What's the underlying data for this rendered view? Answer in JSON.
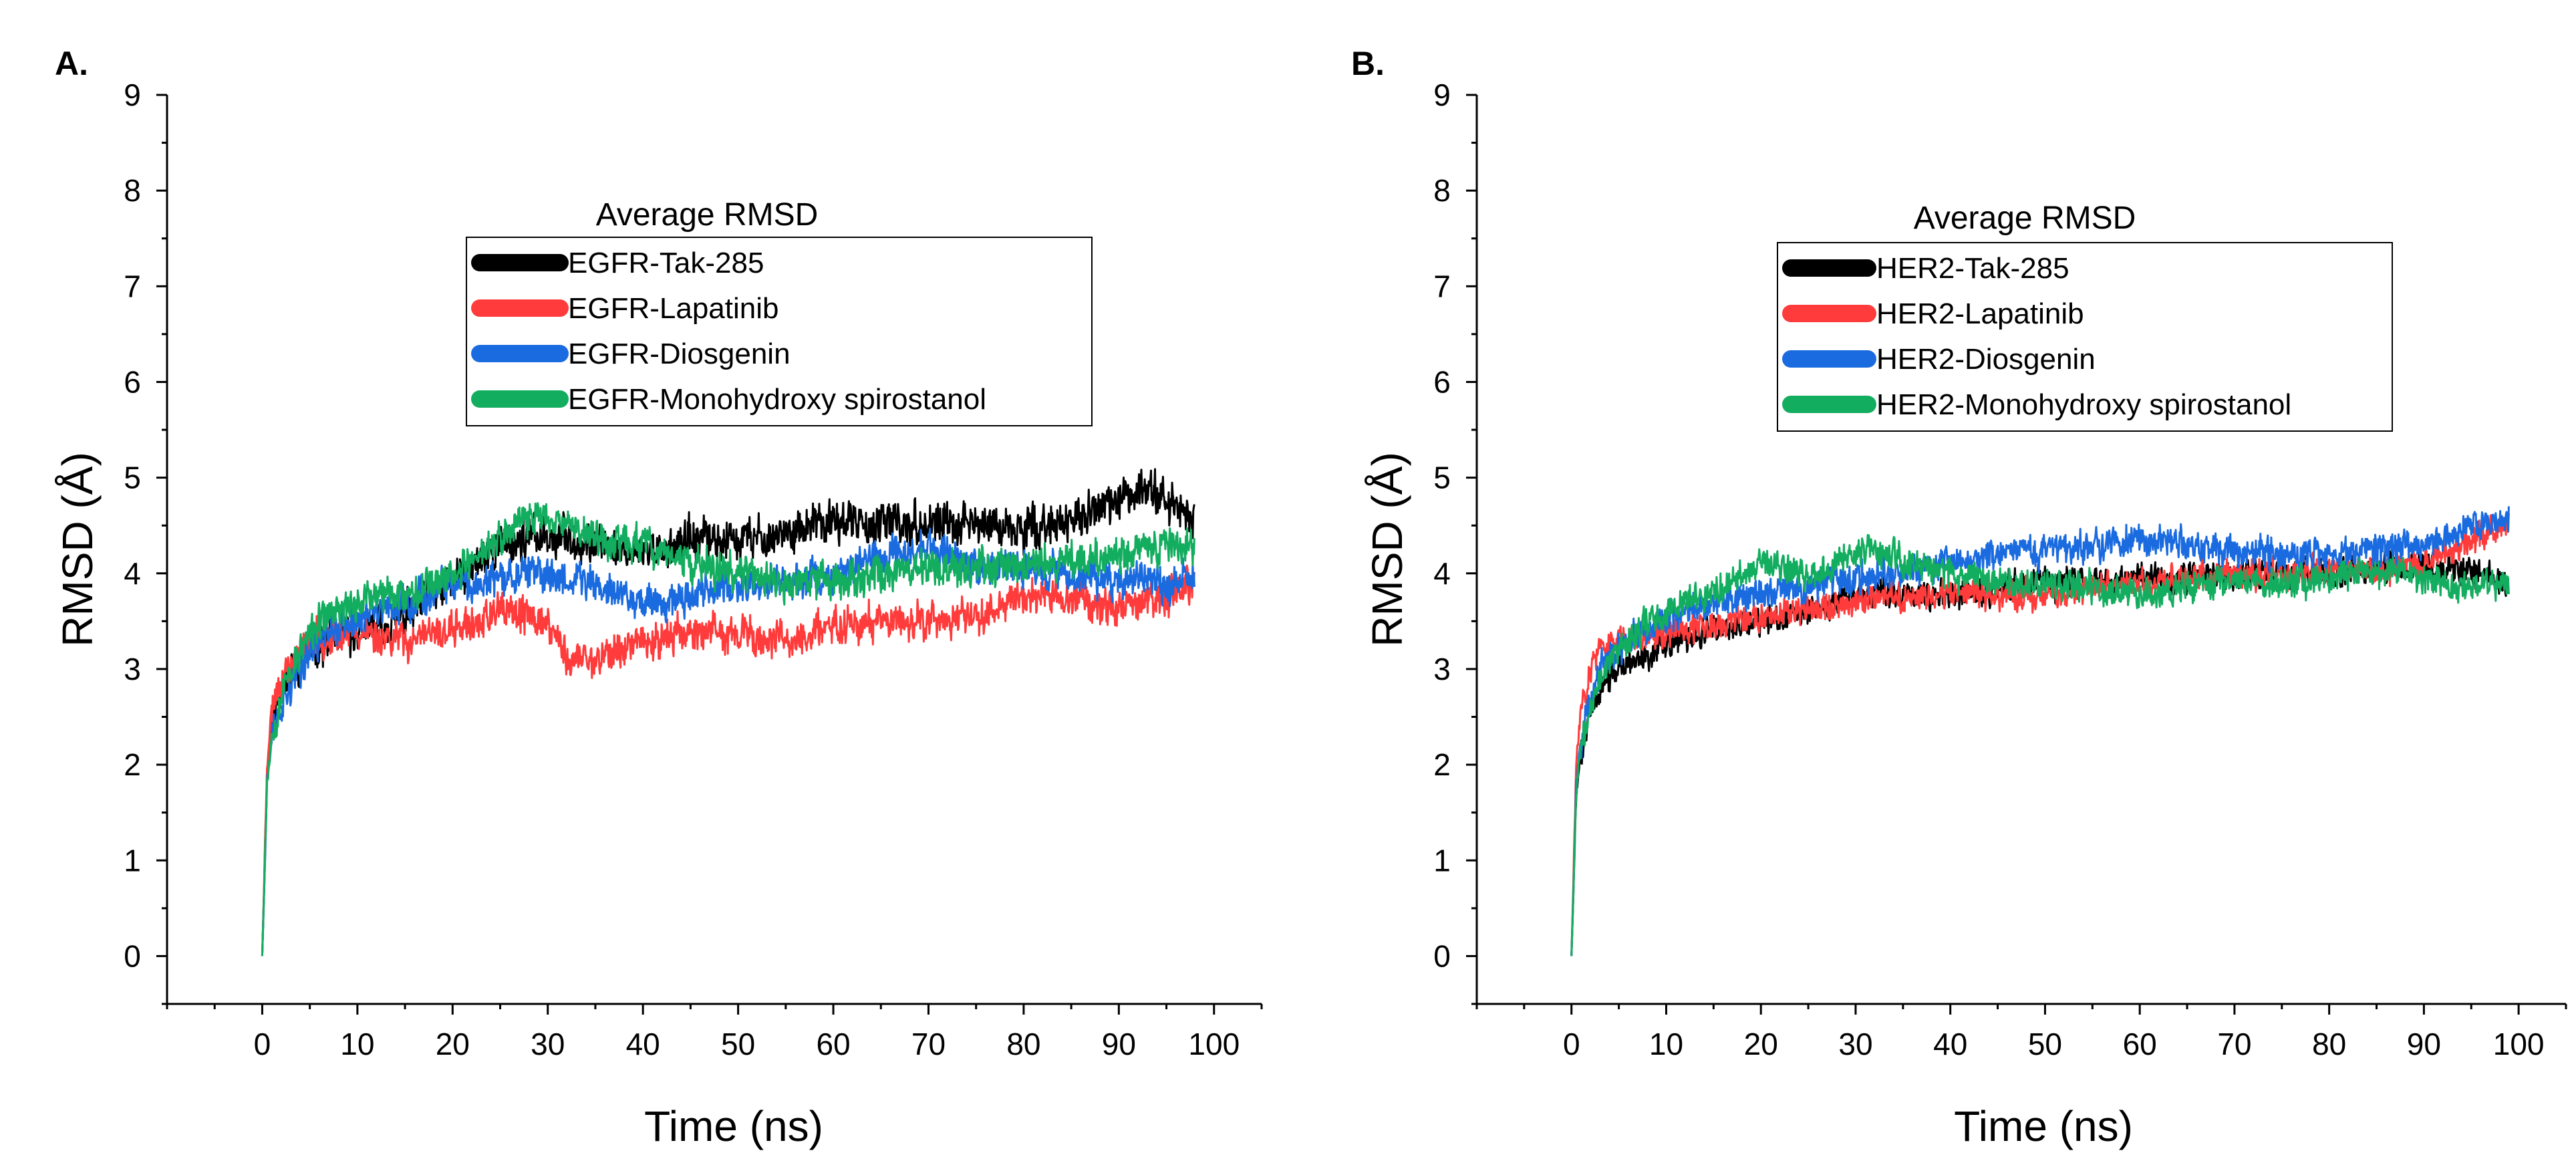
{
  "figure": {
    "panels": [
      {
        "label": "A.",
        "legend": {
          "title": "Average RMSD",
          "entries": [
            "EGFR-Tak-285",
            "EGFR-Lapatinib",
            "EGFR-Diosgenin",
            "EGFR-Monohydroxy spirostanol"
          ]
        }
      },
      {
        "label": "B.",
        "legend": {
          "title": "Average RMSD",
          "entries": [
            "HER2-Tak-285",
            "HER2-Lapatinib",
            "HER2-Diosgenin",
            "HER2-Monohydroxy spirostanol"
          ]
        }
      }
    ]
  },
  "colors": {
    "black": "#000000",
    "red": "#ff3b3b",
    "blue": "#1a6be0",
    "green": "#13ad5f"
  },
  "chart_data": [
    {
      "type": "line",
      "title": "Average RMSD",
      "xlabel": "Time (ns)",
      "ylabel": "RMSD (Å)",
      "xlim": [
        -10,
        105
      ],
      "ylim": [
        -0.5,
        9
      ],
      "xticks": [
        0,
        10,
        20,
        30,
        40,
        50,
        60,
        70,
        80,
        90,
        100
      ],
      "yticks": [
        0,
        1,
        2,
        3,
        4,
        5,
        6,
        7,
        8,
        9
      ],
      "series": [
        {
          "name": "EGFR-Tak-285",
          "color": "#000000",
          "noise": 0.22,
          "seed": 11,
          "x": [
            0,
            0.5,
            1,
            2,
            3,
            5,
            7,
            10,
            15,
            20,
            25,
            30,
            35,
            40,
            45,
            50,
            55,
            60,
            65,
            70,
            75,
            80,
            85,
            90,
            93,
            95,
            98
          ],
          "y": [
            0,
            1.9,
            2.4,
            2.8,
            3.0,
            3.2,
            3.3,
            3.4,
            3.55,
            3.9,
            4.3,
            4.4,
            4.3,
            4.2,
            4.35,
            4.35,
            4.4,
            4.55,
            4.5,
            4.5,
            4.5,
            4.45,
            4.55,
            4.75,
            4.95,
            4.75,
            4.55
          ]
        },
        {
          "name": "EGFR-Lapatinib",
          "color": "#ff3b3b",
          "noise": 0.2,
          "seed": 23,
          "x": [
            0,
            0.5,
            1,
            2,
            3,
            5,
            7,
            10,
            15,
            20,
            25,
            30,
            32,
            35,
            40,
            45,
            50,
            55,
            60,
            65,
            70,
            75,
            80,
            85,
            90,
            95,
            98
          ],
          "y": [
            0,
            2.0,
            2.6,
            2.9,
            3.0,
            3.3,
            3.35,
            3.4,
            3.3,
            3.4,
            3.6,
            3.5,
            3.1,
            3.1,
            3.3,
            3.4,
            3.35,
            3.3,
            3.45,
            3.5,
            3.5,
            3.55,
            3.8,
            3.75,
            3.65,
            3.75,
            3.9
          ]
        },
        {
          "name": "EGFR-Diosgenin",
          "color": "#1a6be0",
          "noise": 0.2,
          "seed": 37,
          "x": [
            0,
            0.5,
            1,
            2,
            3,
            5,
            7,
            10,
            15,
            20,
            25,
            30,
            35,
            40,
            45,
            50,
            55,
            60,
            65,
            70,
            75,
            80,
            85,
            90,
            95,
            98
          ],
          "y": [
            0,
            1.8,
            2.3,
            2.6,
            2.8,
            3.2,
            3.4,
            3.5,
            3.7,
            3.85,
            3.95,
            4.0,
            3.9,
            3.7,
            3.8,
            3.85,
            3.9,
            4.0,
            4.2,
            4.25,
            4.1,
            4.05,
            4.0,
            3.95,
            3.9,
            3.95
          ]
        },
        {
          "name": "EGFR-Monohydroxy spirostanol",
          "color": "#13ad5f",
          "noise": 0.2,
          "seed": 53,
          "x": [
            0,
            0.5,
            1,
            2,
            3,
            5,
            7,
            10,
            15,
            20,
            25,
            28,
            31,
            35,
            40,
            45,
            50,
            55,
            60,
            65,
            70,
            75,
            80,
            85,
            90,
            95,
            98
          ],
          "y": [
            0,
            1.8,
            2.3,
            2.7,
            3.0,
            3.35,
            3.6,
            3.7,
            3.8,
            4.0,
            4.35,
            4.6,
            4.6,
            4.35,
            4.3,
            4.1,
            4.0,
            3.9,
            3.95,
            4.0,
            4.1,
            4.05,
            4.1,
            4.15,
            4.2,
            4.3,
            4.3
          ]
        }
      ]
    },
    {
      "type": "line",
      "title": "Average RMSD",
      "xlabel": "Time (ns)",
      "ylabel": "RMSD (Å)",
      "xlim": [
        -10,
        105
      ],
      "ylim": [
        -0.5,
        9
      ],
      "xticks": [
        0,
        10,
        20,
        30,
        40,
        50,
        60,
        70,
        80,
        90,
        100
      ],
      "yticks": [
        0,
        1,
        2,
        3,
        4,
        5,
        6,
        7,
        8,
        9
      ],
      "series": [
        {
          "name": "HER2-Tak-285",
          "color": "#000000",
          "noise": 0.16,
          "seed": 71,
          "x": [
            0,
            0.5,
            1,
            2,
            3,
            5,
            7,
            10,
            15,
            20,
            25,
            30,
            35,
            40,
            45,
            50,
            55,
            60,
            65,
            70,
            75,
            80,
            85,
            90,
            95,
            99
          ],
          "y": [
            0,
            1.7,
            2.1,
            2.6,
            2.8,
            3.0,
            3.1,
            3.25,
            3.4,
            3.5,
            3.6,
            3.75,
            3.8,
            3.8,
            3.85,
            3.9,
            3.9,
            3.95,
            3.95,
            4.0,
            4.0,
            4.0,
            4.05,
            4.1,
            4.0,
            3.9
          ]
        },
        {
          "name": "HER2-Lapatinib",
          "color": "#ff3b3b",
          "noise": 0.16,
          "seed": 83,
          "x": [
            0,
            0.5,
            1,
            2,
            3,
            5,
            7,
            10,
            15,
            20,
            25,
            30,
            35,
            40,
            45,
            50,
            55,
            60,
            65,
            70,
            75,
            80,
            85,
            90,
            95,
            99
          ],
          "y": [
            0,
            2.0,
            2.6,
            3.0,
            3.2,
            3.3,
            3.35,
            3.4,
            3.45,
            3.55,
            3.6,
            3.7,
            3.75,
            3.8,
            3.8,
            3.75,
            3.85,
            3.9,
            3.95,
            4.0,
            4.0,
            4.05,
            4.0,
            4.1,
            4.35,
            4.55
          ]
        },
        {
          "name": "HER2-Diosgenin",
          "color": "#1a6be0",
          "noise": 0.17,
          "seed": 97,
          "x": [
            0,
            0.5,
            1,
            2,
            3,
            5,
            7,
            10,
            15,
            20,
            25,
            30,
            35,
            40,
            45,
            50,
            55,
            60,
            65,
            70,
            75,
            80,
            85,
            90,
            95,
            99
          ],
          "y": [
            0,
            1.8,
            2.3,
            2.7,
            3.0,
            3.2,
            3.35,
            3.5,
            3.7,
            3.8,
            3.85,
            3.95,
            4.0,
            4.1,
            4.2,
            4.25,
            4.3,
            4.35,
            4.3,
            4.25,
            4.2,
            4.2,
            4.25,
            4.3,
            4.5,
            4.6
          ]
        },
        {
          "name": "HER2-Monohydroxy spirostanol",
          "color": "#13ad5f",
          "noise": 0.17,
          "seed": 109,
          "x": [
            0,
            0.5,
            1,
            2,
            3,
            5,
            7,
            10,
            15,
            20,
            25,
            30,
            32,
            35,
            40,
            45,
            50,
            55,
            60,
            65,
            70,
            75,
            80,
            85,
            90,
            95,
            99
          ],
          "y": [
            0,
            1.7,
            2.2,
            2.6,
            2.9,
            3.2,
            3.4,
            3.6,
            3.8,
            4.1,
            4.0,
            4.2,
            4.3,
            4.1,
            4.0,
            3.9,
            3.9,
            3.85,
            3.8,
            3.85,
            3.9,
            3.9,
            3.95,
            4.0,
            3.95,
            3.85,
            3.9
          ]
        }
      ]
    }
  ]
}
